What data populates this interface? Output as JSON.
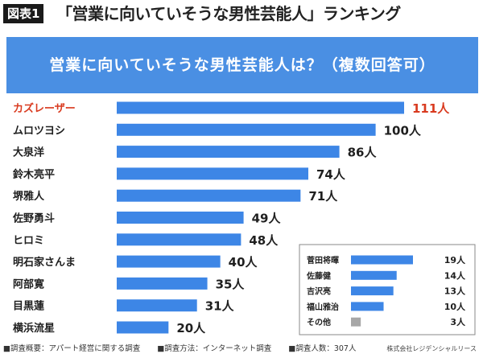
{
  "header": {
    "badge": "図表1",
    "title": "「営業に向いていそうな男性芸能人」ランキング"
  },
  "banner": {
    "question": "営業に向いていそうな男性芸能人は？（複数回答可）"
  },
  "colors": {
    "bar": "#3d86e6",
    "highlight": "#d93a1f",
    "other": "#a7a7a7",
    "banner": "#4a8fe3"
  },
  "chart_data": [
    {
      "type": "bar",
      "orientation": "horizontal",
      "unit": "人",
      "categories": [
        "カズレーザー",
        "ムロツヨシ",
        "大泉洋",
        "鈴木亮平",
        "堺雅人",
        "佐野勇斗",
        "ヒロミ",
        "明石家さんま",
        "阿部寛",
        "目黒蓮",
        "横浜流星"
      ],
      "values": [
        111,
        100,
        86,
        74,
        71,
        49,
        48,
        40,
        35,
        31,
        20
      ],
      "highlight": [
        "カズレーザー"
      ]
    },
    {
      "type": "bar",
      "orientation": "horizontal",
      "unit": "人",
      "categories": [
        "菅田将暉",
        "佐藤健",
        "吉沢亮",
        "福山雅治",
        "その他"
      ],
      "values": [
        19,
        14,
        13,
        10,
        3
      ],
      "muted": [
        "その他"
      ]
    }
  ],
  "footer": {
    "survey_summary": "■調査概要：アパート経営に関する調査",
    "survey_method": "■調査方法：インターネット調査",
    "respondents": "■調査人数：307人",
    "credit": "株式会社レジデンシャルリース"
  }
}
